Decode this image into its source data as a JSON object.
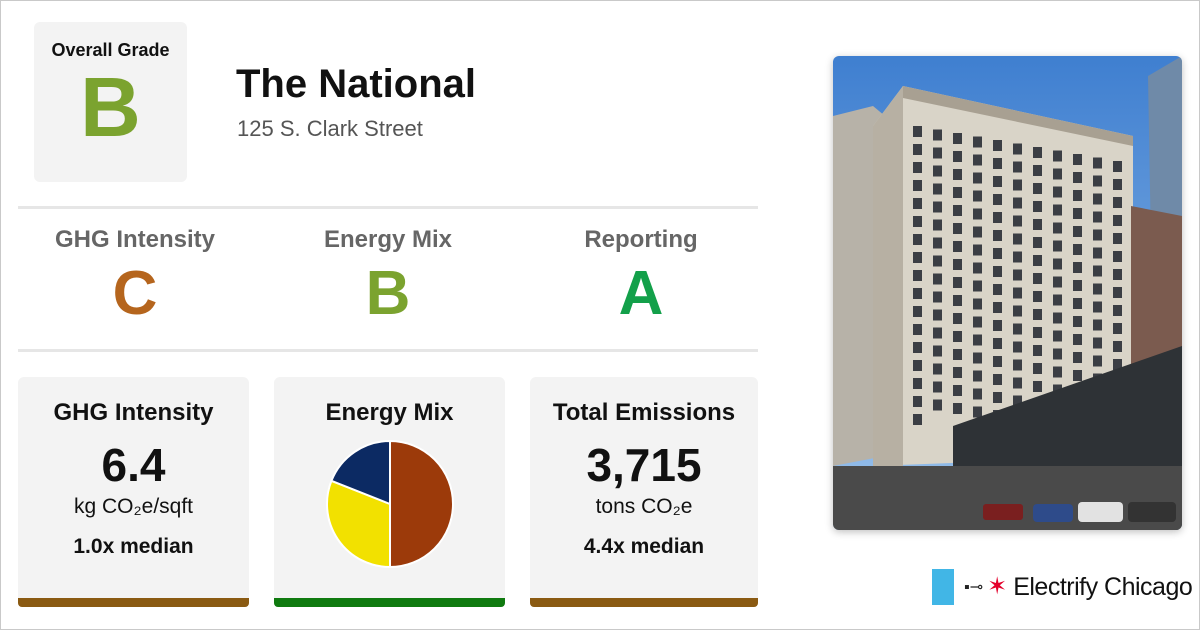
{
  "overall": {
    "label": "Overall Grade",
    "grade": "B",
    "grade_color": "#7ba32f"
  },
  "building": {
    "name": "The National",
    "address": "125 S. Clark Street"
  },
  "grades": [
    {
      "title": "GHG Intensity",
      "grade": "C",
      "color": "#b5651d"
    },
    {
      "title": "Energy Mix",
      "grade": "B",
      "color": "#7ba32f"
    },
    {
      "title": "Reporting",
      "grade": "A",
      "color": "#13a04a"
    }
  ],
  "cards": {
    "ghg": {
      "title": "GHG Intensity",
      "value": "6.4",
      "unit": "kg CO₂e/sqft",
      "median": "1.0x median",
      "bar_color": "#8a5a12"
    },
    "mix": {
      "title": "Energy Mix",
      "bar_color": "#0f7a0f"
    },
    "emissions": {
      "title": "Total Emissions",
      "value": "3,715",
      "unit": "tons CO₂e",
      "median": "4.4x median",
      "bar_color": "#8a5a12"
    }
  },
  "energy_mix_slices": [
    {
      "color": "#9c3a0a",
      "fraction": 0.5
    },
    {
      "color": "#f2e100",
      "fraction": 0.31
    },
    {
      "color": "#0c2a63",
      "fraction": 0.19
    }
  ],
  "photo": {
    "icon": "building-photo"
  },
  "logo": {
    "text": "Electrify Chicago",
    "flag_color": "#41b6e6",
    "star_color": "#e4002b"
  }
}
